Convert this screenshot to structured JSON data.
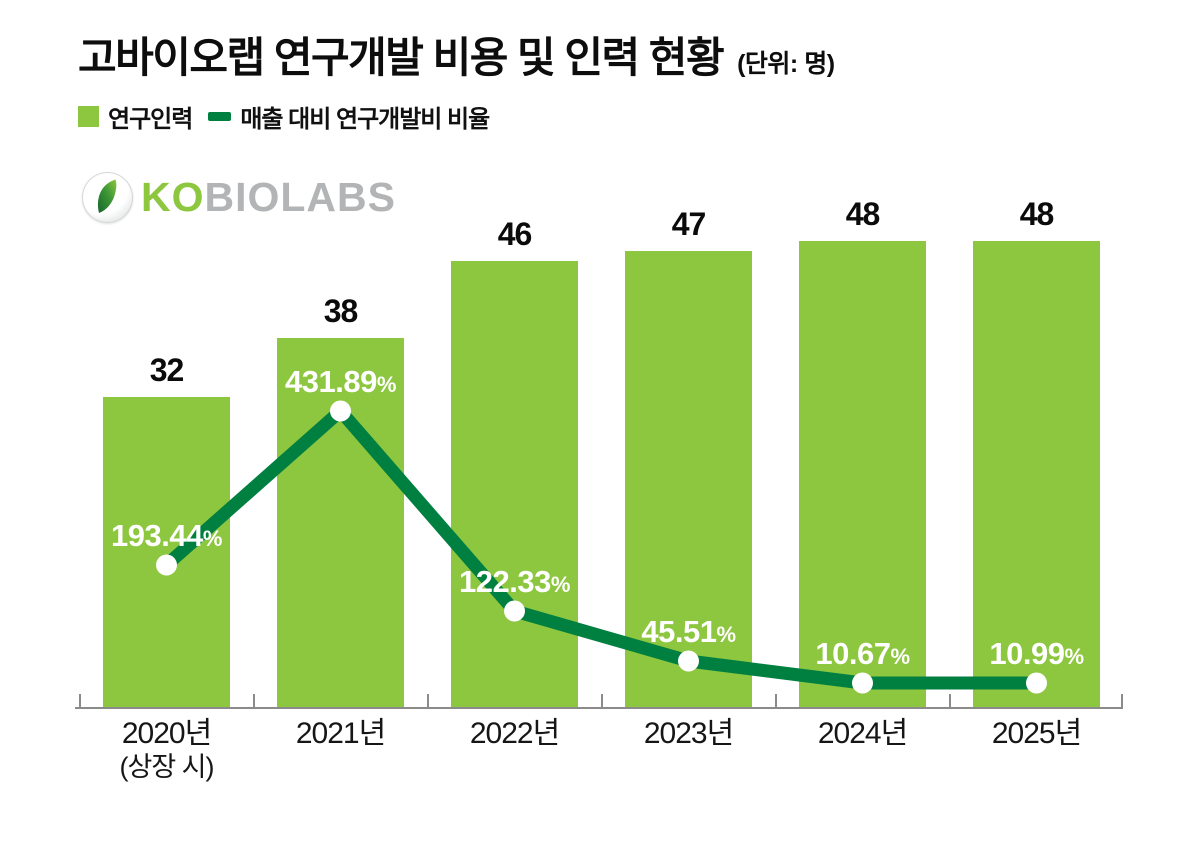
{
  "header": {
    "title": "고바이오랩 연구개발 비용 및 인력 현황",
    "unit_label": "(단위: 명)"
  },
  "legend": {
    "items": [
      {
        "label": "연구인력",
        "swatch": "square",
        "color": "#8dc63f"
      },
      {
        "label": "매출 대비 연구개발비 비율",
        "swatch": "line",
        "color": "#008040"
      }
    ]
  },
  "logo": {
    "text_green": "KO",
    "text_gray": "BIOLABS"
  },
  "chart_data": {
    "type": "bar",
    "title": "고바이오랩 연구개발 비용 및 인력 현황",
    "unit_note": "(단위: 명)",
    "categories": [
      {
        "label": "2020년",
        "sublabel": "(상장 시)"
      },
      {
        "label": "2021년",
        "sublabel": ""
      },
      {
        "label": "2022년",
        "sublabel": ""
      },
      {
        "label": "2023년",
        "sublabel": ""
      },
      {
        "label": "2024년",
        "sublabel": ""
      },
      {
        "label": "2025년",
        "sublabel": ""
      }
    ],
    "series": [
      {
        "name": "연구인력",
        "type": "bar",
        "color": "#8dc63f",
        "value_unit": "명",
        "values": [
          32,
          38,
          46,
          47,
          48,
          48
        ]
      },
      {
        "name": "매출 대비 연구개발비 비율",
        "type": "line",
        "color": "#008040",
        "value_unit": "%",
        "values": [
          193.44,
          431.89,
          122.33,
          45.51,
          10.67,
          10.99
        ]
      }
    ],
    "ylim_bar": [
      0,
      52
    ],
    "ylim_line": [
      0,
      470
    ],
    "grid": false,
    "legend_position": "top-left",
    "marker": "white-circle"
  },
  "colors": {
    "bar_green": "#8dc63f",
    "line_green": "#008040",
    "axis_gray": "#8b8b8b",
    "text_black": "#0d0d0d",
    "logo_gray": "#b2b4b6",
    "label_white": "#ffffff"
  }
}
